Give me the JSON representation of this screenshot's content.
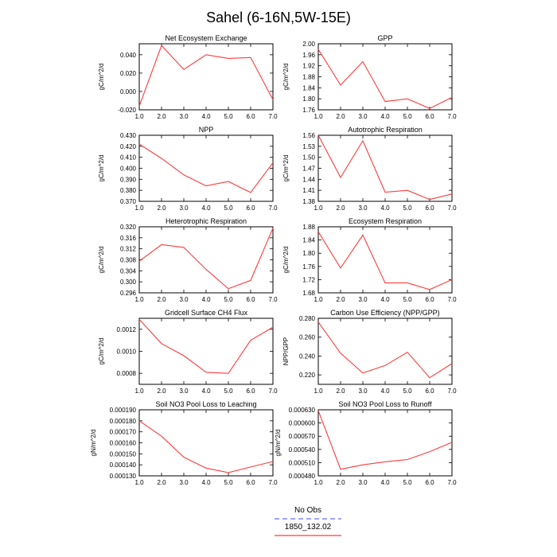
{
  "figure": {
    "title": "Sahel (6-16N,5W-15E)"
  },
  "legend": {
    "items": [
      {
        "label": "No Obs",
        "color": "#6b6bff",
        "dash": true
      },
      {
        "label": "1850_132.02",
        "color": "#ff3b3b",
        "dash": false
      }
    ]
  },
  "chart_data": [
    {
      "type": "line",
      "title": "Net Ecosystem Exchange",
      "ylabel": "gC/m^2/d",
      "x": [
        1.0,
        2.0,
        3.0,
        4.0,
        5.0,
        6.0,
        7.0
      ],
      "y": [
        -0.016,
        0.05,
        0.024,
        0.04,
        0.036,
        0.037,
        -0.009
      ],
      "xlim": [
        1.0,
        7.0
      ],
      "ylim": [
        -0.02,
        0.052
      ],
      "xticks": [
        "1.0",
        "2.0",
        "3.0",
        "4.0",
        "5.0",
        "6.0",
        "7.0"
      ],
      "yticks": [
        -0.02,
        0.0,
        0.02,
        0.04
      ],
      "yticklabels": [
        "-0.020",
        "0.000",
        "0.020",
        "0.040"
      ],
      "line_color": "#ff3b3b"
    },
    {
      "type": "line",
      "title": "GPP",
      "ylabel": "gC/m^2/d",
      "x": [
        1.0,
        2.0,
        3.0,
        4.0,
        5.0,
        6.0,
        7.0
      ],
      "y": [
        1.98,
        1.85,
        1.935,
        1.79,
        1.8,
        1.765,
        1.805
      ],
      "xlim": [
        1.0,
        7.0
      ],
      "ylim": [
        1.76,
        2.0
      ],
      "xticks": [
        "1.0",
        "2.0",
        "3.0",
        "4.0",
        "5.0",
        "6.0",
        "7.0"
      ],
      "yticks": [
        1.76,
        1.8,
        1.84,
        1.88,
        1.92,
        1.96,
        2.0
      ],
      "yticklabels": [
        "1.76",
        "1.80",
        "1.84",
        "1.88",
        "1.92",
        "1.96",
        "2.00"
      ],
      "line_color": "#ff3b3b"
    },
    {
      "type": "line",
      "title": "NPP",
      "ylabel": "gC/m^2/d",
      "x": [
        1.0,
        2.0,
        3.0,
        4.0,
        5.0,
        6.0,
        7.0
      ],
      "y": [
        0.422,
        0.409,
        0.394,
        0.384,
        0.388,
        0.378,
        0.405
      ],
      "xlim": [
        1.0,
        7.0
      ],
      "ylim": [
        0.37,
        0.43
      ],
      "xticks": [
        "1.0",
        "2.0",
        "3.0",
        "4.0",
        "5.0",
        "6.0",
        "7.0"
      ],
      "yticks": [
        0.37,
        0.38,
        0.39,
        0.4,
        0.41,
        0.42,
        0.43
      ],
      "yticklabels": [
        "0.370",
        "0.380",
        "0.390",
        "0.400",
        "0.410",
        "0.420",
        "0.430"
      ],
      "line_color": "#ff3b3b"
    },
    {
      "type": "line",
      "title": "Autotrophic Respiration",
      "ylabel": "gC/m^2/d",
      "x": [
        1.0,
        2.0,
        3.0,
        4.0,
        5.0,
        6.0,
        7.0
      ],
      "y": [
        1.56,
        1.445,
        1.545,
        1.405,
        1.41,
        1.385,
        1.4
      ],
      "xlim": [
        1.0,
        7.0
      ],
      "ylim": [
        1.38,
        1.56
      ],
      "xticks": [
        "1.0",
        "2.0",
        "3.0",
        "4.0",
        "5.0",
        "6.0",
        "7.0"
      ],
      "yticks": [
        1.38,
        1.41,
        1.44,
        1.47,
        1.5,
        1.53,
        1.56
      ],
      "yticklabels": [
        "1.38",
        "1.41",
        "1.44",
        "1.47",
        "1.50",
        "1.53",
        "1.56"
      ],
      "line_color": "#ff3b3b"
    },
    {
      "type": "line",
      "title": "Heterotrophic Respiration",
      "ylabel": "gC/m^2/d",
      "x": [
        1.0,
        2.0,
        3.0,
        4.0,
        5.0,
        6.0,
        7.0
      ],
      "y": [
        0.3075,
        0.3135,
        0.3125,
        0.3045,
        0.2975,
        0.3005,
        0.3195
      ],
      "xlim": [
        1.0,
        7.0
      ],
      "ylim": [
        0.296,
        0.32
      ],
      "xticks": [
        "1.0",
        "2.0",
        "3.0",
        "4.0",
        "5.0",
        "6.0",
        "7.0"
      ],
      "yticks": [
        0.296,
        0.3,
        0.304,
        0.308,
        0.312,
        0.316,
        0.32
      ],
      "yticklabels": [
        "0.296",
        "0.300",
        "0.304",
        "0.308",
        "0.312",
        "0.316",
        "0.320"
      ],
      "line_color": "#ff3b3b"
    },
    {
      "type": "line",
      "title": "Ecosystem Respiration",
      "ylabel": "gC/m^2/d",
      "x": [
        1.0,
        2.0,
        3.0,
        4.0,
        5.0,
        6.0,
        7.0
      ],
      "y": [
        1.865,
        1.755,
        1.855,
        1.71,
        1.71,
        1.69,
        1.72
      ],
      "xlim": [
        1.0,
        7.0
      ],
      "ylim": [
        1.68,
        1.88
      ],
      "xticks": [
        "1.0",
        "2.0",
        "3.0",
        "4.0",
        "5.0",
        "6.0",
        "7.0"
      ],
      "yticks": [
        1.68,
        1.72,
        1.76,
        1.8,
        1.84,
        1.88
      ],
      "yticklabels": [
        "1.68",
        "1.72",
        "1.76",
        "1.80",
        "1.84",
        "1.88"
      ],
      "line_color": "#ff3b3b"
    },
    {
      "type": "line",
      "title": "Gridcell Surface CH4 Flux",
      "ylabel": "gC/m^2/d",
      "x": [
        1.0,
        2.0,
        3.0,
        4.0,
        5.0,
        6.0,
        7.0
      ],
      "y": [
        0.00129,
        0.00107,
        0.00096,
        0.00081,
        0.0008,
        0.0011,
        0.00122
      ],
      "xlim": [
        1.0,
        7.0
      ],
      "ylim": [
        0.0007,
        0.0013
      ],
      "xticks": [
        "1.0",
        "2.0",
        "3.0",
        "4.0",
        "5.0",
        "6.0",
        "7.0"
      ],
      "yticks": [
        0.0008,
        0.001,
        0.0012
      ],
      "yticklabels": [
        "0.0008",
        "0.0010",
        "0.0012"
      ],
      "line_color": "#ff3b3b"
    },
    {
      "type": "line",
      "title": "Carbon Use Efficiency (NPP/GPP)",
      "ylabel": "NPP/GPP",
      "x": [
        1.0,
        2.0,
        3.0,
        4.0,
        5.0,
        6.0,
        7.0
      ],
      "y": [
        0.276,
        0.243,
        0.222,
        0.23,
        0.244,
        0.217,
        0.232
      ],
      "xlim": [
        1.0,
        7.0
      ],
      "ylim": [
        0.21,
        0.28
      ],
      "xticks": [
        "1.0",
        "2.0",
        "3.0",
        "4.0",
        "5.0",
        "6.0",
        "7.0"
      ],
      "yticks": [
        0.22,
        0.24,
        0.26,
        0.28
      ],
      "yticklabels": [
        "0.220",
        "0.240",
        "0.260",
        "0.280"
      ],
      "line_color": "#ff3b3b"
    },
    {
      "type": "line",
      "title": "Soil NO3 Pool Loss to Leaching",
      "ylabel": "gN/m^2/d",
      "x": [
        1.0,
        2.0,
        3.0,
        4.0,
        5.0,
        6.0,
        7.0
      ],
      "y": [
        0.00018,
        0.000166,
        0.000147,
        0.000137,
        0.000133,
        0.000138,
        0.000143
      ],
      "xlim": [
        1.0,
        7.0
      ],
      "ylim": [
        0.00013,
        0.00019
      ],
      "xticks": [
        "1.0",
        "2.0",
        "3.0",
        "4.0",
        "5.0",
        "6.0",
        "7.0"
      ],
      "yticks": [
        0.00013,
        0.00014,
        0.00015,
        0.00016,
        0.00017,
        0.00018,
        0.00019
      ],
      "yticklabels": [
        "0.000130",
        "0.000140",
        "0.000150",
        "0.000160",
        "0.000170",
        "0.000180",
        "0.000190"
      ],
      "line_color": "#ff3b3b"
    },
    {
      "type": "line",
      "title": "Soil NO3 Pool Loss to Runoff",
      "ylabel": "gN/m^2/d",
      "x": [
        1.0,
        2.0,
        3.0,
        4.0,
        5.0,
        6.0,
        7.0
      ],
      "y": [
        0.000628,
        0.000495,
        0.000505,
        0.000512,
        0.000517,
        0.000535,
        0.000556
      ],
      "xlim": [
        1.0,
        7.0
      ],
      "ylim": [
        0.00048,
        0.00063
      ],
      "xticks": [
        "1.0",
        "2.0",
        "3.0",
        "4.0",
        "5.0",
        "6.0",
        "7.0"
      ],
      "yticks": [
        0.00048,
        0.00051,
        0.00054,
        0.00057,
        0.0006,
        0.00063
      ],
      "yticklabels": [
        "0.000480",
        "0.000510",
        "0.000540",
        "0.000570",
        "0.000600",
        "0.000630"
      ],
      "line_color": "#ff3b3b"
    }
  ]
}
